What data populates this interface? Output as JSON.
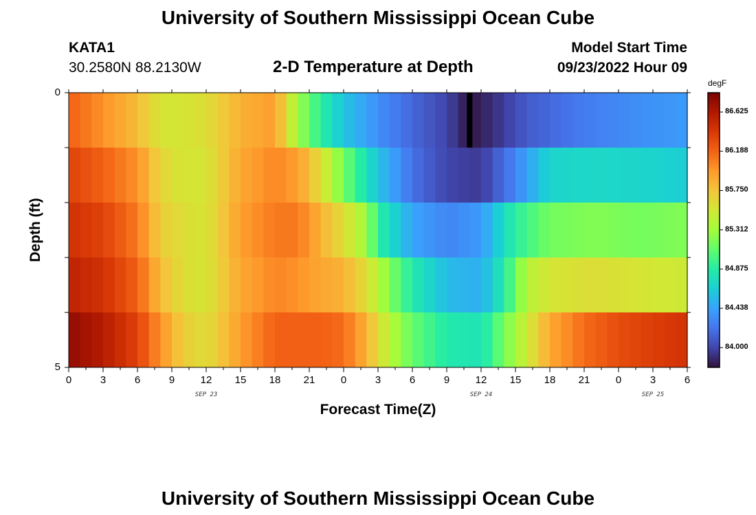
{
  "header": {
    "title": "University of Southern Mississippi Ocean Cube",
    "station": "KATA1",
    "coordinates": "30.2580N  88.2130W",
    "subtitle": "2-D Temperature at Depth",
    "start_label": "Model Start Time",
    "start_value": "09/23/2022 Hour 09"
  },
  "footer": {
    "title": "University of Southern Mississippi Ocean Cube"
  },
  "chart_data": {
    "type": "heatmap",
    "title": "2-D Temperature at Depth",
    "xlabel": "Forecast Time(Z)",
    "ylabel": "Depth (ft)",
    "x_hours": [
      0,
      54
    ],
    "x_tick_labels": [
      "0",
      "3",
      "6",
      "9",
      "12",
      "15",
      "18",
      "21",
      "0",
      "3",
      "6",
      "9",
      "12",
      "15",
      "18",
      "21",
      "0",
      "3",
      "6"
    ],
    "date_labels": [
      {
        "text": "SEP 23",
        "hour": 12
      },
      {
        "text": "SEP 24",
        "hour": 36
      },
      {
        "text": "SEP 25",
        "hour": 51
      }
    ],
    "y_range": [
      0,
      5
    ],
    "y_tick_labels": [
      "0",
      "5"
    ],
    "depth_levels": 5,
    "colorbar": {
      "unit": "degF",
      "range": [
        83.78,
        86.84
      ],
      "labels": [
        "86.625",
        "86.188",
        "85.750",
        "85.312",
        "84.875",
        "84.438",
        "84.000"
      ]
    },
    "profiles": [
      [
        [
          0,
          86.2
        ],
        [
          3,
          86.0
        ],
        [
          6,
          85.8
        ],
        [
          8,
          85.55
        ],
        [
          10,
          85.55
        ],
        [
          12,
          85.6
        ],
        [
          15,
          85.85
        ],
        [
          18,
          85.95
        ],
        [
          20,
          85.3
        ],
        [
          22,
          84.9
        ],
        [
          24,
          84.6
        ],
        [
          27,
          84.35
        ],
        [
          30,
          84.15
        ],
        [
          33,
          84.0
        ],
        [
          35,
          83.8
        ],
        [
          37,
          83.9
        ],
        [
          40,
          84.1
        ],
        [
          45,
          84.25
        ],
        [
          50,
          84.35
        ],
        [
          54,
          84.4
        ]
      ],
      [
        [
          0,
          86.35
        ],
        [
          3,
          86.2
        ],
        [
          6,
          86.0
        ],
        [
          8,
          85.65
        ],
        [
          10,
          85.55
        ],
        [
          12,
          85.55
        ],
        [
          15,
          85.9
        ],
        [
          18,
          86.05
        ],
        [
          20,
          85.95
        ],
        [
          22,
          85.6
        ],
        [
          24,
          85.15
        ],
        [
          27,
          84.6
        ],
        [
          30,
          84.2
        ],
        [
          33,
          84.0
        ],
        [
          36,
          83.95
        ],
        [
          39,
          84.3
        ],
        [
          42,
          84.7
        ],
        [
          46,
          84.72
        ],
        [
          50,
          84.7
        ],
        [
          54,
          84.65
        ]
      ],
      [
        [
          0,
          86.45
        ],
        [
          3,
          86.35
        ],
        [
          6,
          86.1
        ],
        [
          8,
          85.7
        ],
        [
          10,
          85.6
        ],
        [
          12,
          85.55
        ],
        [
          15,
          85.95
        ],
        [
          18,
          86.1
        ],
        [
          20,
          86.1
        ],
        [
          22,
          85.85
        ],
        [
          24,
          85.6
        ],
        [
          26,
          85.3
        ],
        [
          27,
          84.9
        ],
        [
          30,
          84.45
        ],
        [
          33,
          84.3
        ],
        [
          36,
          84.4
        ],
        [
          39,
          84.9
        ],
        [
          42,
          85.15
        ],
        [
          46,
          85.2
        ],
        [
          50,
          85.15
        ],
        [
          54,
          85.2
        ]
      ],
      [
        [
          0,
          86.55
        ],
        [
          3,
          86.45
        ],
        [
          6,
          86.2
        ],
        [
          8,
          85.8
        ],
        [
          10,
          85.6
        ],
        [
          12,
          85.55
        ],
        [
          15,
          85.9
        ],
        [
          18,
          86.05
        ],
        [
          20,
          86.0
        ],
        [
          22,
          85.9
        ],
        [
          24,
          85.85
        ],
        [
          26,
          85.6
        ],
        [
          28,
          85.2
        ],
        [
          30,
          84.85
        ],
        [
          33,
          84.55
        ],
        [
          36,
          84.5
        ],
        [
          38,
          84.85
        ],
        [
          40,
          85.4
        ],
        [
          42,
          85.55
        ],
        [
          46,
          85.6
        ],
        [
          50,
          85.55
        ],
        [
          54,
          85.5
        ]
      ],
      [
        [
          0,
          86.75
        ],
        [
          3,
          86.6
        ],
        [
          6,
          86.35
        ],
        [
          8,
          86.0
        ],
        [
          10,
          85.7
        ],
        [
          12,
          85.6
        ],
        [
          15,
          85.95
        ],
        [
          18,
          86.2
        ],
        [
          22,
          86.2
        ],
        [
          24,
          86.15
        ],
        [
          26,
          85.85
        ],
        [
          28,
          85.4
        ],
        [
          30,
          85.1
        ],
        [
          33,
          84.85
        ],
        [
          36,
          84.8
        ],
        [
          38,
          85.15
        ],
        [
          40,
          85.5
        ],
        [
          42,
          85.9
        ],
        [
          45,
          86.15
        ],
        [
          48,
          86.3
        ],
        [
          52,
          86.4
        ],
        [
          54,
          86.45
        ]
      ]
    ]
  },
  "colors": {
    "min_marker": "#000000",
    "ramp": [
      "#30123b",
      "#4145ab",
      "#4675ed",
      "#39a2fc",
      "#1bcfd4",
      "#24eca6",
      "#61fc6c",
      "#a4fc3b",
      "#d1e834",
      "#f3c63a",
      "#fe9b2d",
      "#f36315",
      "#d93806",
      "#b11901",
      "#7a0403"
    ]
  }
}
